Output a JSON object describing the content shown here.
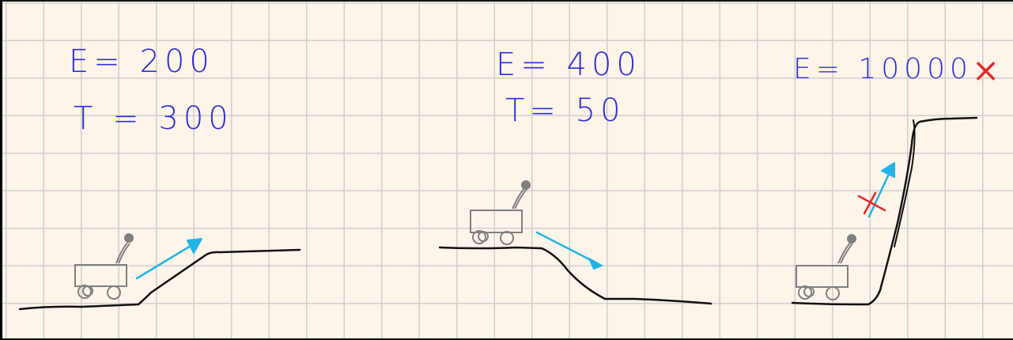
{
  "panels": [
    {
      "energy_label": "E= 200",
      "time_label": "T = 300"
    },
    {
      "energy_label": "E= 400",
      "time_label": "T= 50"
    },
    {
      "energy_label": "E= 10000",
      "time_label": "",
      "invalid_mark": "×"
    }
  ],
  "colors": {
    "ink": "#2e2fd6",
    "terrain": "#111111",
    "robot": "#808080",
    "arrow": "#22b4e6",
    "cross": "#e22a2a",
    "paper": "#fdf4ea",
    "grid": "#cfcfcf"
  }
}
